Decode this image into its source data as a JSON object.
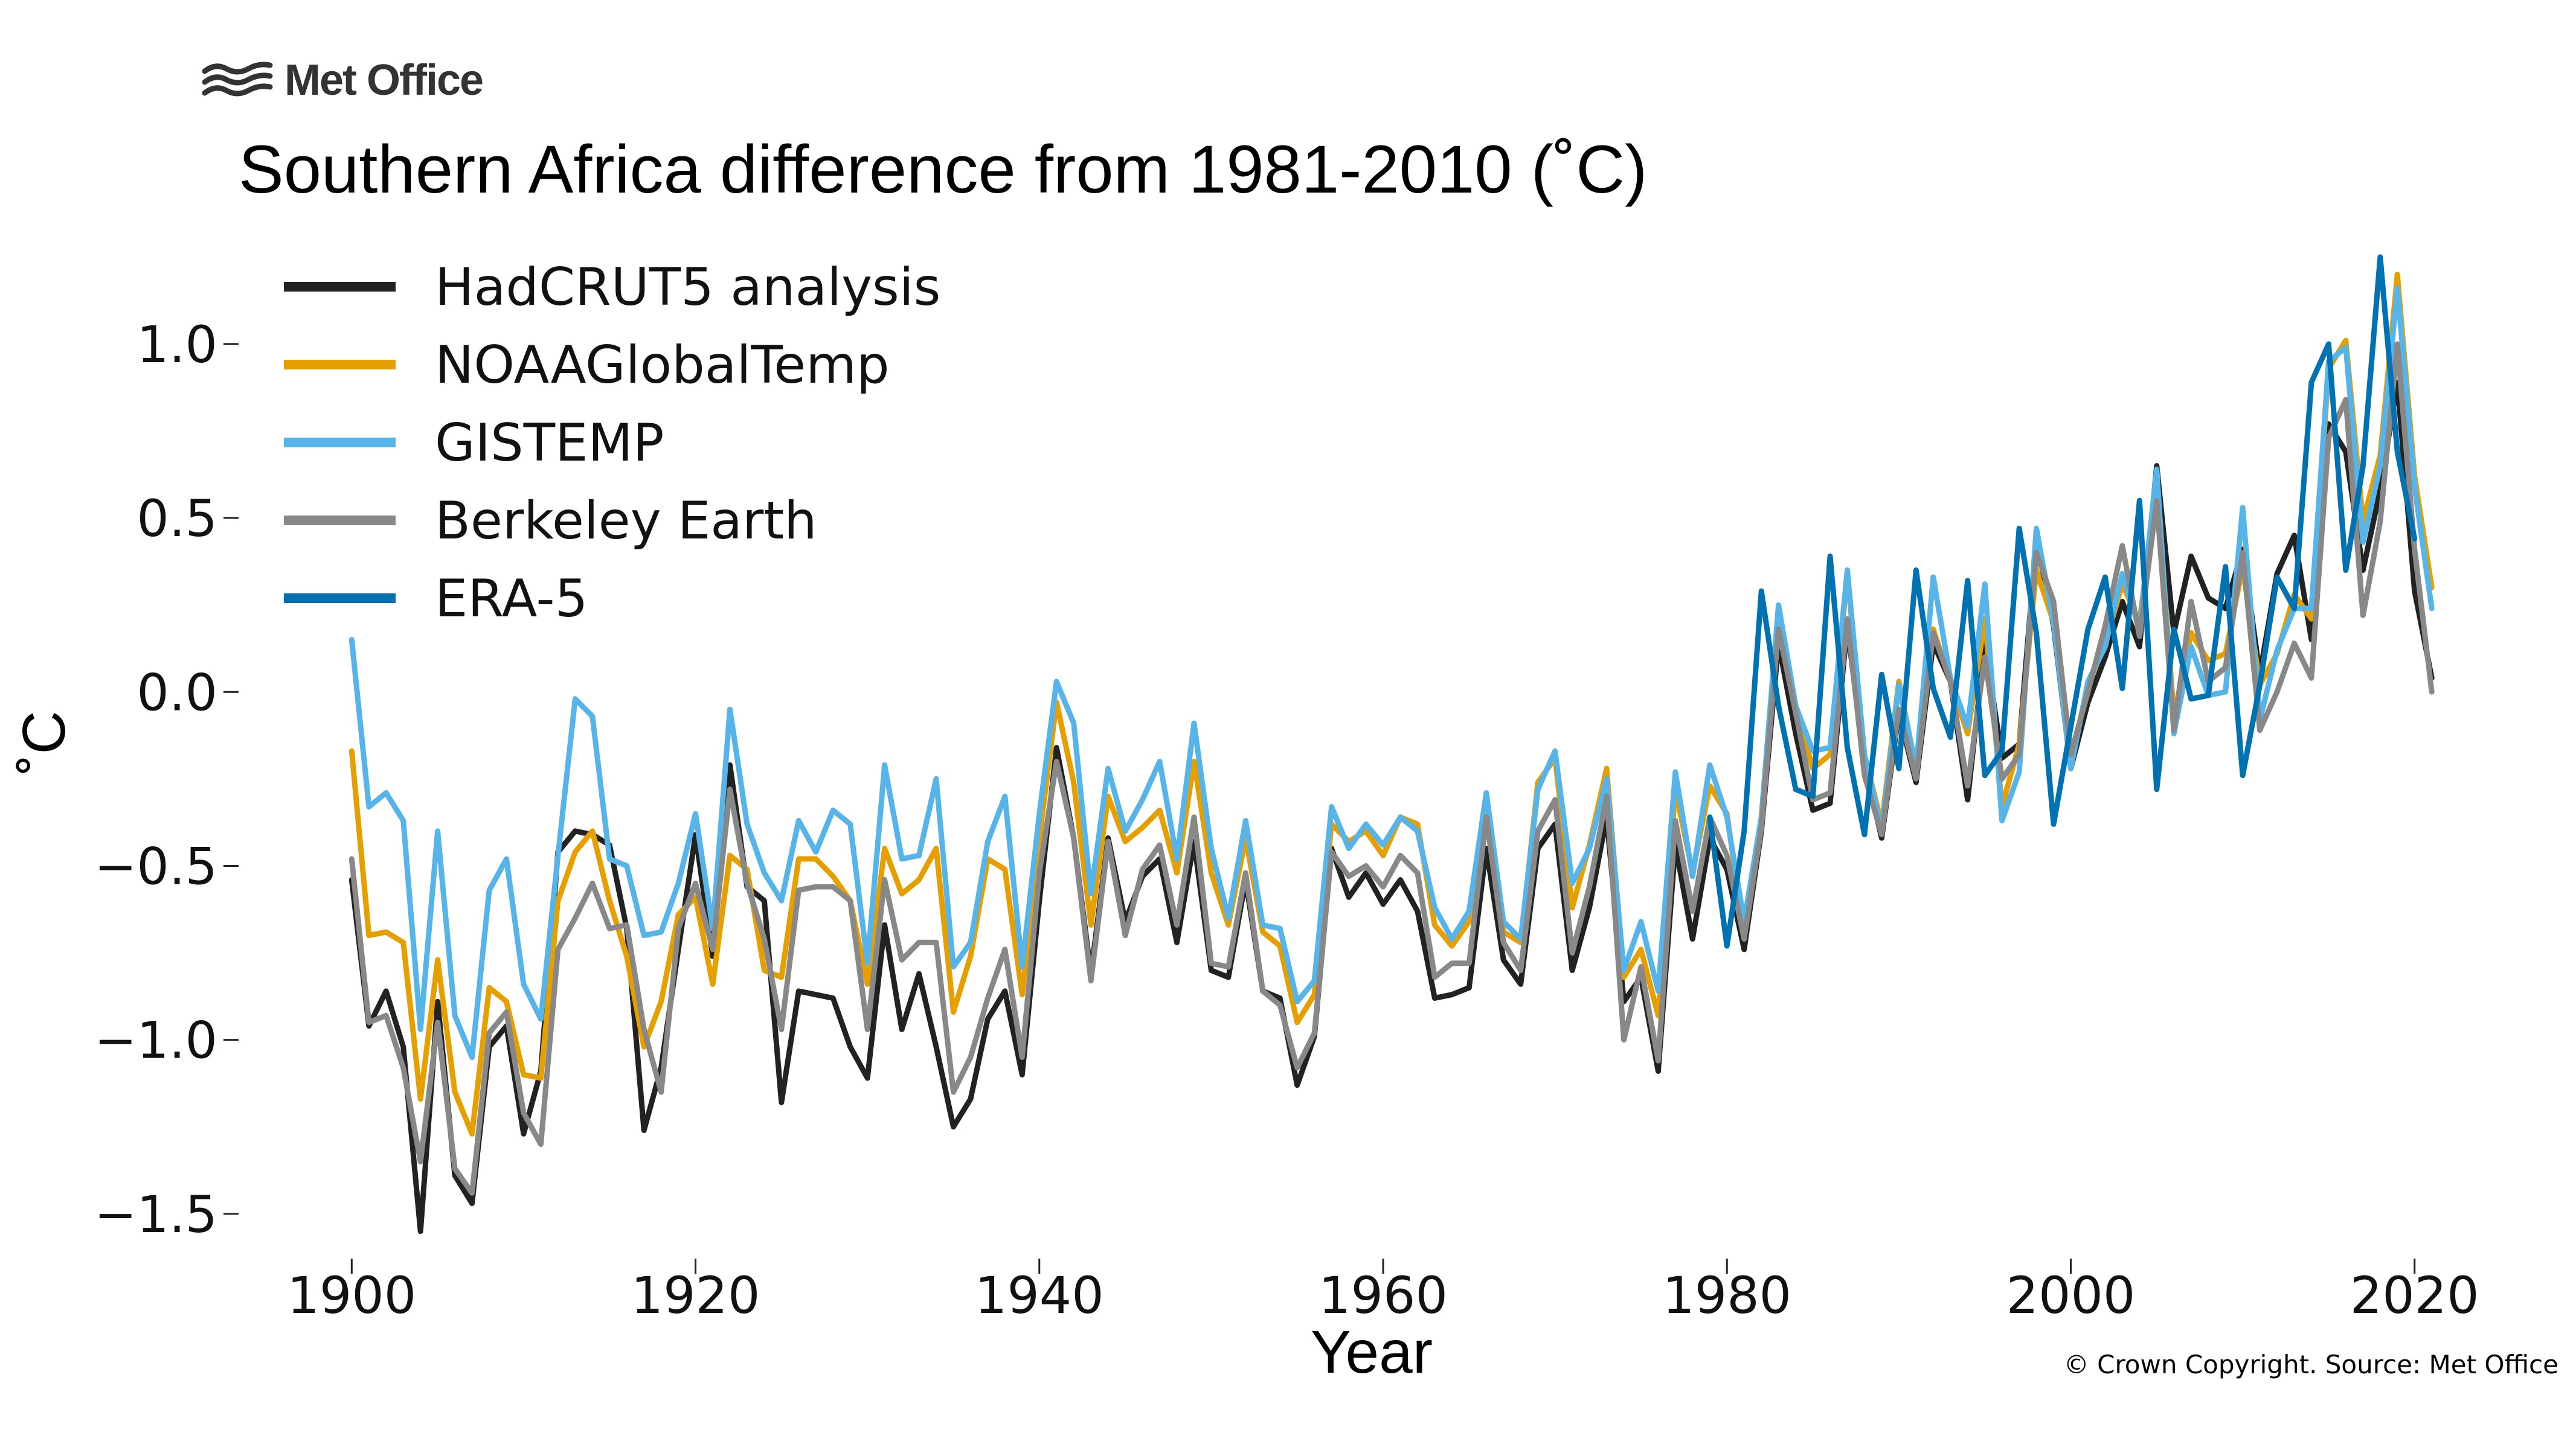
{
  "logo": {
    "text": "Met Office"
  },
  "credit": "© Crown Copyright. Source: Met Office",
  "chart_data": {
    "type": "line",
    "title": "Southern Africa difference from 1981-2010 (˚C)",
    "xlabel": "Year",
    "ylabel": "˚C",
    "xlim": [
      1895,
      2025
    ],
    "ylim": [
      -1.62,
      1.26
    ],
    "xticks": [
      1900,
      1920,
      1940,
      1960,
      1980,
      2000,
      2020
    ],
    "yticks": [
      -1.5,
      -1.0,
      -0.5,
      0.0,
      0.5,
      1.0
    ],
    "ytick_labels": [
      "−1.5",
      "−1.0",
      "−0.5",
      "0.0",
      "0.5",
      "1.0"
    ],
    "grid": false,
    "legend_position": "top-left",
    "series": [
      {
        "name": "HadCRUT5 analysis",
        "color": "#222222",
        "start": 1900,
        "values": [
          -0.54,
          -0.96,
          -0.86,
          -1.02,
          -1.55,
          -0.89,
          -1.39,
          -1.47,
          -1.02,
          -0.96,
          -1.27,
          -1.09,
          -0.46,
          -0.4,
          -0.41,
          -0.44,
          -0.68,
          -1.26,
          -1.08,
          -0.74,
          -0.41,
          -0.76,
          -0.21,
          -0.56,
          -0.6,
          -1.18,
          -0.86,
          -0.87,
          -0.88,
          -1.02,
          -1.11,
          -0.67,
          -0.97,
          -0.81,
          -1.02,
          -1.25,
          -1.17,
          -0.94,
          -0.86,
          -1.1,
          -0.6,
          -0.16,
          -0.42,
          -0.81,
          -0.42,
          -0.66,
          -0.53,
          -0.48,
          -0.72,
          -0.43,
          -0.8,
          -0.82,
          -0.54,
          -0.86,
          -0.88,
          -1.13,
          -0.99,
          -0.45,
          -0.59,
          -0.52,
          -0.61,
          -0.54,
          -0.63,
          -0.88,
          -0.87,
          -0.85,
          -0.45,
          -0.77,
          -0.84,
          -0.45,
          -0.38,
          -0.8,
          -0.62,
          -0.36,
          -0.89,
          -0.82,
          -1.09,
          -0.44,
          -0.71,
          -0.42,
          -0.51,
          -0.74,
          -0.4,
          0.14,
          -0.12,
          -0.34,
          -0.32,
          0.19,
          -0.21,
          -0.42,
          -0.06,
          -0.26,
          0.14,
          0.03,
          -0.31,
          0.14,
          -0.19,
          -0.15,
          0.44,
          0.19,
          -0.22,
          -0.03,
          0.1,
          0.26,
          0.13,
          0.65,
          0.17,
          0.39,
          0.27,
          0.24,
          0.41,
          0.05,
          0.34,
          0.45,
          0.15,
          0.77,
          0.69,
          0.35,
          0.58,
          0.89,
          0.29,
          0.04
        ]
      },
      {
        "name": "NOAAGlobalTemp",
        "color": "#E69F00",
        "start": 1900,
        "values": [
          -0.17,
          -0.7,
          -0.69,
          -0.72,
          -1.17,
          -0.77,
          -1.15,
          -1.27,
          -0.85,
          -0.89,
          -1.1,
          -1.11,
          -0.6,
          -0.46,
          -0.4,
          -0.6,
          -0.76,
          -1.02,
          -0.89,
          -0.64,
          -0.59,
          -0.84,
          -0.47,
          -0.51,
          -0.8,
          -0.82,
          -0.48,
          -0.48,
          -0.53,
          -0.6,
          -0.84,
          -0.45,
          -0.58,
          -0.54,
          -0.45,
          -0.92,
          -0.76,
          -0.48,
          -0.51,
          -0.87,
          -0.42,
          -0.03,
          -0.26,
          -0.67,
          -0.3,
          -0.43,
          -0.39,
          -0.34,
          -0.52,
          -0.2,
          -0.52,
          -0.67,
          -0.42,
          -0.69,
          -0.73,
          -0.95,
          -0.87,
          -0.38,
          -0.43,
          -0.4,
          -0.47,
          -0.36,
          -0.38,
          -0.67,
          -0.73,
          -0.66,
          -0.33,
          -0.69,
          -0.72,
          -0.26,
          -0.19,
          -0.62,
          -0.44,
          -0.22,
          -0.82,
          -0.74,
          -0.93,
          -0.28,
          -0.52,
          -0.27,
          -0.35,
          -0.7,
          -0.38,
          0.22,
          -0.05,
          -0.22,
          -0.18,
          0.34,
          -0.18,
          -0.38,
          0.03,
          -0.22,
          0.18,
          0.03,
          -0.12,
          0.21,
          -0.33,
          -0.15,
          0.35,
          0.2,
          -0.2,
          0.02,
          0.14,
          0.31,
          0.2,
          0.6,
          -0.07,
          0.17,
          0.09,
          0.11,
          0.36,
          0.02,
          0.11,
          0.28,
          0.21,
          0.93,
          1.01,
          0.49,
          0.68,
          1.2,
          0.62,
          0.3
        ]
      },
      {
        "name": "GISTEMP",
        "color": "#56B4E9",
        "start": 1900,
        "values": [
          0.15,
          -0.33,
          -0.29,
          -0.37,
          -0.97,
          -0.4,
          -0.93,
          -1.05,
          -0.57,
          -0.48,
          -0.84,
          -0.94,
          -0.47,
          -0.02,
          -0.07,
          -0.48,
          -0.5,
          -0.7,
          -0.69,
          -0.55,
          -0.35,
          -0.68,
          -0.05,
          -0.38,
          -0.52,
          -0.6,
          -0.37,
          -0.46,
          -0.34,
          -0.38,
          -0.78,
          -0.21,
          -0.48,
          -0.47,
          -0.25,
          -0.79,
          -0.72,
          -0.43,
          -0.3,
          -0.79,
          -0.35,
          0.03,
          -0.09,
          -0.58,
          -0.22,
          -0.4,
          -0.31,
          -0.2,
          -0.48,
          -0.09,
          -0.45,
          -0.65,
          -0.37,
          -0.67,
          -0.68,
          -0.89,
          -0.83,
          -0.33,
          -0.45,
          -0.38,
          -0.44,
          -0.36,
          -0.4,
          -0.62,
          -0.71,
          -0.63,
          -0.29,
          -0.66,
          -0.71,
          -0.28,
          -0.17,
          -0.55,
          -0.45,
          -0.25,
          -0.8,
          -0.66,
          -0.86,
          -0.23,
          -0.53,
          -0.21,
          -0.36,
          -0.66,
          -0.36,
          0.25,
          -0.04,
          -0.17,
          -0.16,
          0.35,
          -0.18,
          -0.4,
          0.02,
          -0.22,
          0.33,
          0.04,
          -0.1,
          0.31,
          -0.37,
          -0.23,
          0.47,
          0.2,
          -0.22,
          0.03,
          0.13,
          0.34,
          0.18,
          0.64,
          -0.12,
          0.13,
          -0.01,
          0.0,
          0.53,
          -0.08,
          0.12,
          0.24,
          0.24,
          0.95,
          0.99,
          0.43,
          0.65,
          1.16,
          0.59,
          0.24
        ]
      },
      {
        "name": "Berkeley Earth",
        "color": "#888888",
        "start": 1900,
        "values": [
          -0.48,
          -0.95,
          -0.93,
          -1.08,
          -1.35,
          -0.95,
          -1.37,
          -1.44,
          -0.98,
          -0.92,
          -1.21,
          -1.3,
          -0.74,
          -0.65,
          -0.55,
          -0.68,
          -0.67,
          -0.97,
          -1.15,
          -0.68,
          -0.55,
          -0.74,
          -0.28,
          -0.55,
          -0.71,
          -0.97,
          -0.57,
          -0.56,
          -0.56,
          -0.6,
          -0.97,
          -0.54,
          -0.77,
          -0.72,
          -0.72,
          -1.15,
          -1.05,
          -0.88,
          -0.74,
          -1.05,
          -0.52,
          -0.2,
          -0.42,
          -0.83,
          -0.43,
          -0.7,
          -0.51,
          -0.44,
          -0.67,
          -0.36,
          -0.78,
          -0.79,
          -0.52,
          -0.86,
          -0.9,
          -1.08,
          -0.98,
          -0.46,
          -0.53,
          -0.5,
          -0.56,
          -0.47,
          -0.52,
          -0.82,
          -0.78,
          -0.78,
          -0.36,
          -0.72,
          -0.8,
          -0.4,
          -0.31,
          -0.75,
          -0.56,
          -0.3,
          -1.0,
          -0.79,
          -1.06,
          -0.37,
          -0.63,
          -0.36,
          -0.47,
          -0.71,
          -0.39,
          0.18,
          -0.06,
          -0.31,
          -0.29,
          0.21,
          -0.24,
          -0.41,
          -0.05,
          -0.25,
          0.17,
          0.03,
          -0.27,
          0.1,
          -0.25,
          -0.18,
          0.4,
          0.26,
          -0.18,
          0.0,
          0.19,
          0.42,
          0.16,
          0.55,
          -0.11,
          0.26,
          0.03,
          0.07,
          0.4,
          -0.11,
          0.0,
          0.14,
          0.04,
          0.73,
          0.84,
          0.22,
          0.49,
          1.0,
          0.41,
          0.0
        ]
      },
      {
        "name": "ERA-5",
        "color": "#0072B2",
        "start": 1979,
        "values": [
          -0.36,
          -0.73,
          -0.4,
          0.29,
          -0.04,
          -0.28,
          -0.3,
          0.39,
          -0.16,
          -0.41,
          0.05,
          -0.22,
          0.35,
          0.01,
          -0.13,
          0.32,
          -0.24,
          -0.17,
          0.47,
          0.17,
          -0.38,
          -0.1,
          0.18,
          0.33,
          0.01,
          0.55,
          -0.28,
          0.18,
          -0.02,
          -0.01,
          0.36,
          -0.24,
          0.02,
          0.33,
          0.24,
          0.89,
          1.0,
          0.35,
          0.65,
          1.25,
          0.69,
          0.44
        ]
      }
    ]
  }
}
